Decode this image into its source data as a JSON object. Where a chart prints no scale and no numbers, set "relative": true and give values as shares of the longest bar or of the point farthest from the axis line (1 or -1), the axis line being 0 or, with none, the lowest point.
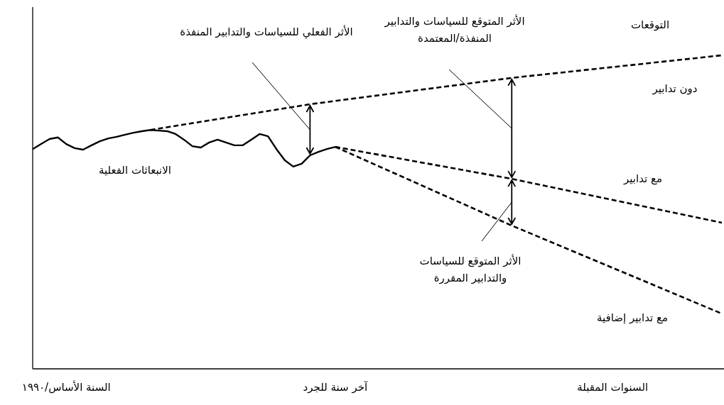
{
  "chart_data": {
    "type": "line",
    "relative": true,
    "categories": [
      null,
      null,
      null,
      null,
      "السنة الأساس/١٩٩٠",
      null,
      null,
      null,
      null,
      null,
      null,
      null,
      null,
      null,
      null,
      null,
      null,
      null,
      null,
      null,
      null,
      null,
      null,
      null,
      null,
      null,
      null,
      null,
      null,
      null,
      null,
      null,
      null,
      null,
      null,
      null,
      "آخر سنة للجرد",
      null,
      null,
      null,
      null,
      null,
      null,
      null,
      null,
      null,
      null,
      null,
      null,
      null,
      null,
      null,
      null,
      null,
      null,
      null,
      null,
      null,
      null,
      null,
      null,
      null,
      null,
      null,
      null,
      null,
      null,
      null,
      null,
      "السنوات المقبلة",
      null,
      null,
      null,
      null,
      null,
      null,
      null,
      null,
      null,
      null,
      null,
      null,
      null
    ],
    "series": [
      {
        "name": "الانبعاثات الفعلية",
        "color": "#000000",
        "line_style": "solid",
        "values": [
          0.701,
          0.717,
          0.733,
          0.738,
          0.717,
          0.704,
          0.699,
          0.713,
          0.726,
          0.735,
          0.74,
          0.747,
          0.753,
          0.758,
          0.762,
          0.76,
          0.758,
          0.749,
          0.731,
          0.71,
          0.706,
          0.722,
          0.731,
          0.722,
          0.713,
          0.713,
          0.731,
          0.749,
          0.742,
          0.701,
          0.665,
          0.645,
          0.654,
          0.681,
          0.692,
          0.701,
          0.708,
          null,
          null,
          null,
          null,
          null,
          null,
          null,
          null,
          null,
          null,
          null,
          null,
          null,
          null,
          null,
          null,
          null,
          null,
          null,
          null,
          null,
          null,
          null,
          null,
          null,
          null,
          null,
          null,
          null,
          null,
          null,
          null,
          null,
          null,
          null,
          null,
          null,
          null,
          null,
          null,
          null,
          null,
          null,
          null,
          null,
          null
        ]
      },
      {
        "name": "دون تدابير",
        "color": "#000000",
        "line_style": "dashed",
        "values": [
          null,
          null,
          null,
          null,
          null,
          null,
          null,
          null,
          null,
          null,
          null,
          null,
          null,
          null,
          0.762,
          null,
          null,
          null,
          null,
          null,
          null,
          null,
          null,
          null,
          null,
          null,
          null,
          null,
          null,
          null,
          null,
          null,
          null,
          0.844,
          null,
          null,
          null,
          null,
          null,
          null,
          null,
          null,
          null,
          null,
          null,
          null,
          null,
          null,
          null,
          null,
          null,
          null,
          null,
          null,
          null,
          null,
          null,
          0.928,
          null,
          null,
          null,
          null,
          null,
          null,
          null,
          null,
          null,
          null,
          null,
          null,
          null,
          null,
          null,
          null,
          null,
          null,
          null,
          null,
          null,
          null,
          null,
          null,
          1
        ]
      },
      {
        "name": "مع تدابير",
        "color": "#000000",
        "line_style": "dashed",
        "values": [
          null,
          null,
          null,
          null,
          null,
          null,
          null,
          null,
          null,
          null,
          null,
          null,
          null,
          null,
          null,
          null,
          null,
          null,
          null,
          null,
          null,
          null,
          null,
          null,
          null,
          null,
          null,
          null,
          null,
          null,
          null,
          null,
          null,
          null,
          null,
          null,
          0.708,
          null,
          null,
          null,
          null,
          null,
          null,
          null,
          null,
          null,
          null,
          null,
          null,
          null,
          null,
          null,
          null,
          null,
          null,
          null,
          null,
          0.606,
          null,
          null,
          null,
          null,
          null,
          null,
          null,
          null,
          null,
          null,
          null,
          null,
          null,
          null,
          null,
          null,
          null,
          null,
          null,
          null,
          null,
          null,
          null,
          null,
          0.466
        ]
      },
      {
        "name": "مع تدابير إضافية",
        "color": "#000000",
        "line_style": "dashed",
        "values": [
          null,
          null,
          null,
          null,
          null,
          null,
          null,
          null,
          null,
          null,
          null,
          null,
          null,
          null,
          null,
          null,
          null,
          null,
          null,
          null,
          null,
          null,
          null,
          null,
          null,
          null,
          null,
          null,
          null,
          null,
          null,
          null,
          null,
          null,
          null,
          null,
          0.708,
          null,
          null,
          null,
          null,
          null,
          null,
          null,
          null,
          null,
          null,
          null,
          null,
          null,
          null,
          null,
          null,
          null,
          null,
          null,
          null,
          0.457,
          null,
          null,
          null,
          null,
          null,
          null,
          null,
          null,
          null,
          null,
          null,
          null,
          null,
          null,
          null,
          null,
          null,
          null,
          null,
          null,
          null,
          null,
          null,
          null,
          0.176
        ]
      }
    ],
    "annotations": [
      "الأثر الفعلي للسياسات والتدابير المنفذة",
      "الأثر المتوقع للسياسات والتدابير المنفذة/المعتمدة",
      "الأثر المتوقع للسياسات والتدابير المقررة",
      "التوقعات"
    ]
  }
}
